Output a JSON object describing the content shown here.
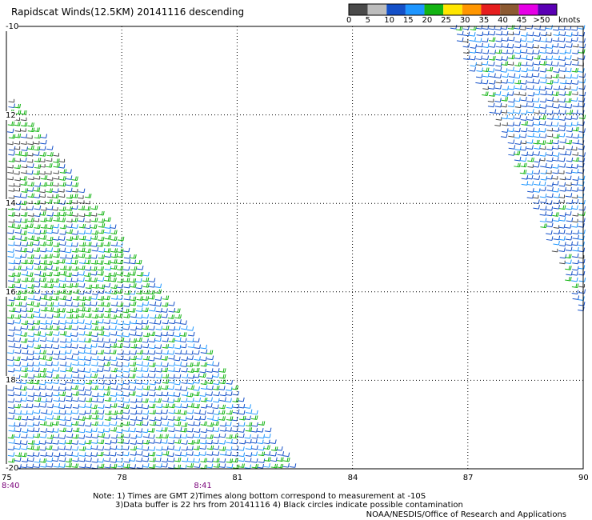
{
  "header": {
    "title": "Rapidscat Winds(12.5KM) 20141116 descending"
  },
  "colorbar": {
    "unit_label": "knots",
    "ticks": [
      "0",
      "5",
      "10",
      "15",
      "20",
      "25",
      "30",
      "35",
      "40",
      "45",
      ">50"
    ],
    "bins": [
      {
        "min": 0,
        "color": "#4a4a4a"
      },
      {
        "min": 5,
        "color": "#bdbdbd"
      },
      {
        "min": 10,
        "color": "#1450c8"
      },
      {
        "min": 15,
        "color": "#1e96ff"
      },
      {
        "min": 20,
        "color": "#14b414"
      },
      {
        "min": 25,
        "color": "#ffe600"
      },
      {
        "min": 30,
        "color": "#ff9600"
      },
      {
        "min": 35,
        "color": "#e61e1e"
      },
      {
        "min": 40,
        "color": "#8c5a32"
      },
      {
        "min": 45,
        "color": "#e600e6"
      },
      {
        "min": 50,
        "color": "#5a00b4"
      }
    ]
  },
  "map": {
    "lat_labels": [
      "-10",
      "12",
      "14",
      "16",
      "18",
      "-20"
    ],
    "lon_labels": [
      "75",
      "78",
      "81",
      "84",
      "87",
      "90"
    ],
    "lat_range": [
      -20,
      -10
    ],
    "lon_range": [
      75,
      90
    ],
    "time_labels": [
      {
        "text": "8:40",
        "lon": 75
      },
      {
        "text": "8:41",
        "lon": 80
      }
    ],
    "swaths": [
      {
        "name": "western-swath",
        "corners": [
          [
            75,
            -11.5
          ],
          [
            75,
            -20
          ],
          [
            82.5,
            -20
          ]
        ]
      },
      {
        "name": "eastern-swath",
        "corners": [
          [
            86.5,
            -10
          ],
          [
            90,
            -10
          ],
          [
            90,
            -16.7
          ]
        ]
      }
    ]
  },
  "notes": {
    "line1": "Note: 1) Times are GMT 2)Times along bottom correspond to measurement at -10S",
    "line2": "3)Data buffer is 22 hrs from 20141116 4) Black circles indicate possible contamination"
  },
  "credit": "NOAA/NESDIS/Office of Research and Applications"
}
